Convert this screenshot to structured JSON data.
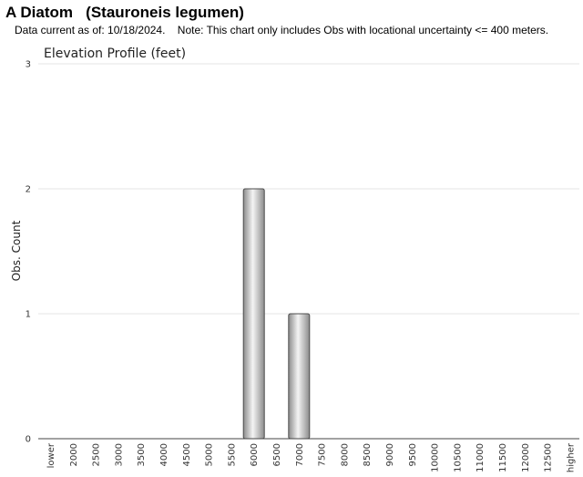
{
  "header": {
    "title": "A Diatom   (Stauroneis legumen)",
    "note": "Data current as of: 10/18/2024.    Note: This chart only includes Obs with locational uncertainty <= 400 meters."
  },
  "chart_data": {
    "type": "bar",
    "title": "Elevation Profile (feet)",
    "xlabel": "",
    "ylabel": "Obs. Count",
    "ylim": [
      0,
      3
    ],
    "yticks": [
      "0",
      "1",
      "2",
      "3"
    ],
    "grid": true,
    "categories": [
      "lower",
      "2000",
      "2500",
      "3000",
      "3500",
      "4000",
      "4500",
      "5000",
      "5500",
      "6000",
      "6500",
      "7000",
      "7500",
      "8000",
      "8500",
      "9000",
      "9500",
      "10000",
      "10500",
      "11000",
      "11500",
      "12000",
      "12500",
      "higher"
    ],
    "values": [
      0,
      0,
      0,
      0,
      0,
      0,
      0,
      0,
      0,
      2,
      0,
      1,
      0,
      0,
      0,
      0,
      0,
      0,
      0,
      0,
      0,
      0,
      0,
      0
    ]
  },
  "colors": {
    "gridline": "#e6e6e6",
    "axis": "#444444",
    "bar_edge": "#4d4d4d",
    "bar_dark": "#8c8c8c",
    "bar_light": "#f4f4f4"
  }
}
